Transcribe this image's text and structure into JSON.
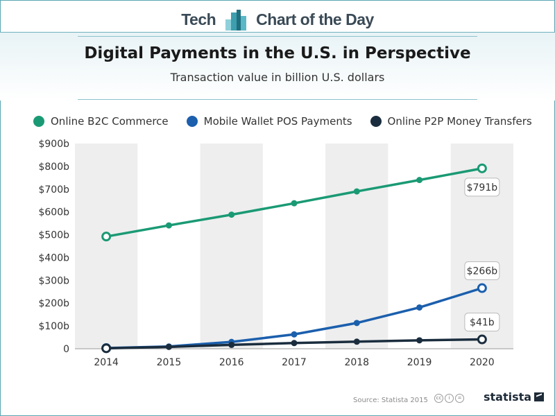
{
  "banner": {
    "left": "Tech",
    "right": "Chart of the Day"
  },
  "title": "Digital Payments in the U.S. in Perspective",
  "subtitle": "Transaction value in billion U.S. dollars",
  "source": "Source: Statista 2015",
  "brand": "statista",
  "colors": {
    "b2c": "#1a9a74",
    "wallet": "#1b5fad",
    "p2p": "#1a2d3e",
    "band": "#eeeeee",
    "accent": "#5aa6b2"
  },
  "chart_data": {
    "type": "line",
    "title": "Digital Payments in the U.S. in Perspective",
    "subtitle": "Transaction value in billion U.S. dollars",
    "xlabel": "",
    "ylabel": "",
    "x": [
      "2014",
      "2015",
      "2016",
      "2017",
      "2018",
      "2019",
      "2020"
    ],
    "ylim": [
      0,
      900
    ],
    "yticks": [
      0,
      100,
      200,
      300,
      400,
      500,
      600,
      700,
      800,
      900
    ],
    "ytick_labels": [
      "0",
      "$100b",
      "$200b",
      "$300b",
      "$400b",
      "$500b",
      "$600b",
      "$700b",
      "$800b",
      "$900b"
    ],
    "legend_position": "top-left",
    "series": [
      {
        "name": "Online B2C Commerce",
        "color_key": "b2c",
        "values": [
          492,
          541,
          588,
          638,
          690,
          740,
          791
        ],
        "end_label": "$791b"
      },
      {
        "name": "Mobile Wallet POS Payments",
        "color_key": "wallet",
        "values": [
          3,
          10,
          30,
          63,
          113,
          181,
          266
        ],
        "end_label": "$266b"
      },
      {
        "name": "Online P2P Money Transfers",
        "color_key": "p2p",
        "values": [
          2,
          8,
          17,
          25,
          31,
          37,
          41
        ],
        "end_label": "$41b"
      }
    ]
  }
}
